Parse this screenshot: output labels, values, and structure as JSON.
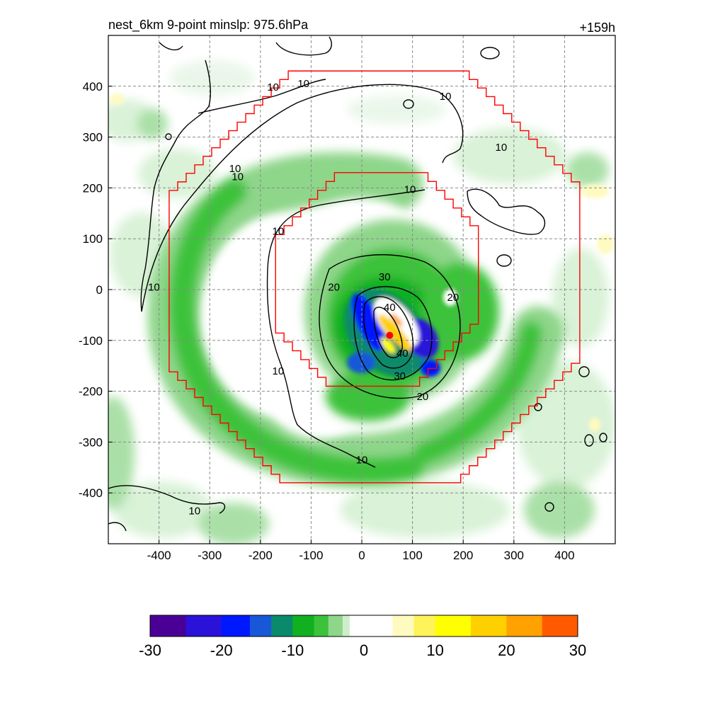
{
  "chart_data": {
    "type": "heatmap",
    "title_left": "nest_6km  9-point minslp: 975.6hPa",
    "title_right": "+159h",
    "xlim": [
      -500,
      500
    ],
    "ylim": [
      -500,
      500
    ],
    "x_ticks": [
      -400,
      -300,
      -200,
      -100,
      0,
      100,
      200,
      300,
      400
    ],
    "x_tick_labels": [
      "-400",
      "-300",
      "-200",
      "-100",
      "0",
      "100",
      "200",
      "300",
      "400"
    ],
    "y_ticks": [
      400,
      300,
      200,
      100,
      0,
      -100,
      -200,
      -300,
      -400
    ],
    "y_tick_labels": [
      "400",
      "300",
      "200",
      "100",
      "0",
      "-100",
      "-200",
      "-300",
      "-400"
    ],
    "grid": true,
    "grid_style": "dashed",
    "colorbar": {
      "range": [
        -30,
        30
      ],
      "ticks": [
        -30,
        -20,
        -10,
        0,
        10,
        20,
        30
      ],
      "tick_labels": [
        "-30",
        "-20",
        "-10",
        "0",
        "10",
        "20",
        "30"
      ],
      "placement": "bottom",
      "colors": {
        "-30": "#4a0096",
        "-25": "#2a12d8",
        "-20": "#0018ff",
        "-16": "#1858d8",
        "-13": "#0a8a6a",
        "-10": "#10b020",
        "-7": "#3cc23a",
        "-5": "#8ed68a",
        "-3": "#cdeecb",
        "-2": "#ffffff",
        "2": "#ffffff",
        "4": "#fffac0",
        "7": "#fff35a",
        "10": "#ffff00",
        "15": "#ffd000",
        "20": "#ffa200",
        "25": "#ff5a00",
        "30": "#ff0000"
      }
    },
    "contour_labels": [
      {
        "text": "10",
        "x": -245,
        "y": 222
      },
      {
        "text": "10",
        "x": -250,
        "y": 238
      },
      {
        "text": "10",
        "x": -175,
        "y": 398
      },
      {
        "text": "10",
        "x": -115,
        "y": 405
      },
      {
        "text": "10",
        "x": 165,
        "y": 380
      },
      {
        "text": "10",
        "x": 275,
        "y": 280
      },
      {
        "text": "10",
        "x": 95,
        "y": 197
      },
      {
        "text": "10",
        "x": -165,
        "y": 115
      },
      {
        "text": "10",
        "x": -410,
        "y": 5
      },
      {
        "text": "10",
        "x": -165,
        "y": -160
      },
      {
        "text": "10",
        "x": 0,
        "y": -335
      },
      {
        "text": "10",
        "x": -330,
        "y": -435
      },
      {
        "text": "20",
        "x": -55,
        "y": 5
      },
      {
        "text": "20",
        "x": 180,
        "y": -15
      },
      {
        "text": "20",
        "x": 120,
        "y": -210
      },
      {
        "text": "30",
        "x": 45,
        "y": 25
      },
      {
        "text": "30",
        "x": 75,
        "y": -170
      },
      {
        "text": "40",
        "x": 55,
        "y": -35
      },
      {
        "text": "40",
        "x": 80,
        "y": -125
      }
    ],
    "storm_center": {
      "x": 55,
      "y": -90
    },
    "inner_nest_extent_km": {
      "x": [
        -170,
        230
      ],
      "y": [
        -190,
        230
      ]
    },
    "outer_nest_extent_km": {
      "x": [
        -380,
        430
      ],
      "y": [
        -380,
        430
      ]
    },
    "highlight_colors": {
      "nest_boundary": "#ff0000",
      "contour": "#000000",
      "storm_center": "#ff0000"
    }
  }
}
